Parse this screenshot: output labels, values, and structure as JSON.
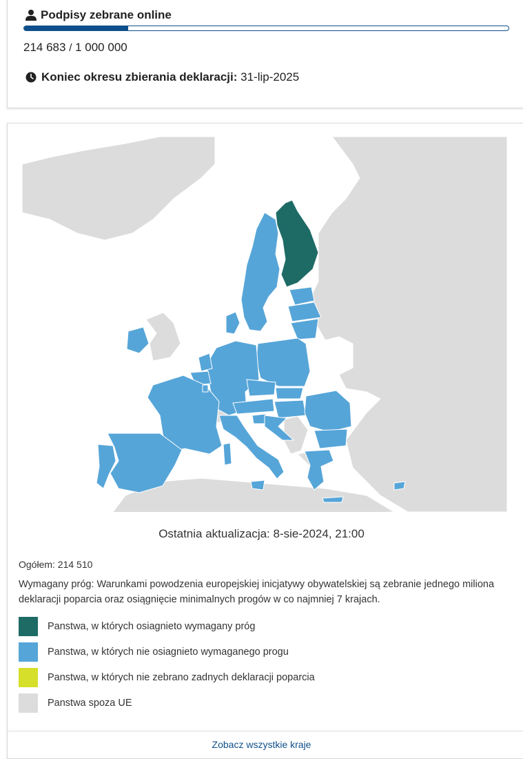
{
  "signatures": {
    "title": "Podpisy zebrane online",
    "collected": "214 683",
    "separator": "/",
    "goal": "1 000 000",
    "progress_fraction": 0.2147
  },
  "deadline": {
    "label": "Koniec okresu zbierania deklaracji:",
    "date": "31-lip-2025"
  },
  "map_section": {
    "last_update": "Ostatnia aktualizacja: 8-sie-2024, 21:00",
    "total": "Ogółem: 214 510",
    "threshold_text": "Wymagany próg: Warunkami powodzenia europejskiej inicjatywy obywatelskiej są zebranie jednego miliona deklaracji poparcia oraz osiągnięcie minimalnych progów w co najmniej 7 krajach.",
    "legend": [
      {
        "label": "Panstwa, w których osiagnieto wymagany próg",
        "color": "#1e6b66"
      },
      {
        "label": "Panstwa, w których nie osiagnieto wymaganego progu",
        "color": "#56a5d8"
      },
      {
        "label": "Panstwa, w których nie zebrano zadnych deklaracji poparcia",
        "color": "#d6e02a"
      },
      {
        "label": "Panstwa spoza UE",
        "color": "#dcdcdc"
      }
    ],
    "see_all": "Zobacz wszystkie kraje"
  },
  "colors": {
    "reached": "#1e6b66",
    "not_reached": "#56a5d8",
    "none": "#d6e02a",
    "non_eu": "#dcdcdc",
    "accent": "#0e4f8b"
  }
}
